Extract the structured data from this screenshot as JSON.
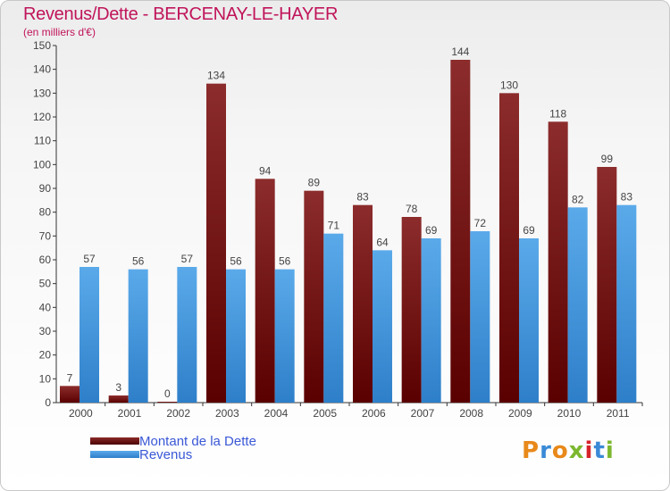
{
  "header": {
    "title": "Revenus/Dette - BERCENAY-LE-HAYER",
    "subtitle": "(en milliers d'€)"
  },
  "logo": {
    "text": "Proxiti"
  },
  "colors": {
    "dette": "#7a1a1a",
    "revenus": "#4f9ee6",
    "title": "#c0145a",
    "legend_text": "#3a58d6"
  },
  "chart_data": {
    "type": "bar",
    "title": "Revenus/Dette - BERCENAY-LE-HAYER",
    "subtitle": "(en milliers d'€)",
    "xlabel": "",
    "ylabel": "",
    "ylim": [
      0,
      150
    ],
    "yticks": [
      0,
      10,
      20,
      30,
      40,
      50,
      60,
      70,
      80,
      90,
      100,
      110,
      120,
      130,
      140,
      150
    ],
    "grid": false,
    "legend_position": "bottom-left",
    "categories": [
      "2000",
      "2001",
      "2002",
      "2003",
      "2004",
      "2005",
      "2006",
      "2007",
      "2008",
      "2009",
      "2010",
      "2011"
    ],
    "series": [
      {
        "name": "Montant de la Dette",
        "color": "#7a1a1a",
        "values": [
          7,
          3,
          0,
          134,
          94,
          89,
          83,
          78,
          144,
          130,
          118,
          99
        ]
      },
      {
        "name": "Revenus",
        "color": "#4f9ee6",
        "values": [
          57,
          56,
          57,
          56,
          56,
          71,
          64,
          69,
          72,
          69,
          82,
          83
        ]
      }
    ]
  }
}
